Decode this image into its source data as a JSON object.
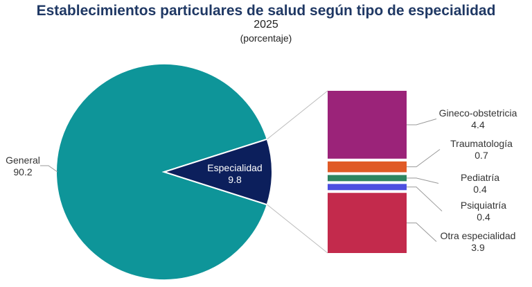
{
  "chart_data": {
    "type": "pie",
    "title": "Establecimientos particulares de salud según tipo de especialidad",
    "subtitle": "2025",
    "unit_label": "(porcentaje)",
    "slices": [
      {
        "name": "General",
        "value": 90.2,
        "color": "#0e9599"
      },
      {
        "name": "Especialidad",
        "value": 9.8,
        "color": "#0c1f5c"
      }
    ],
    "breakdown": {
      "of": "Especialidad",
      "type": "stacked-bar",
      "segments": [
        {
          "name": "Gineco-obstetricia",
          "value": 4.4,
          "color": "#9b2379"
        },
        {
          "name": "Traumatología",
          "value": 0.7,
          "color": "#e05a26"
        },
        {
          "name": "Pediatría",
          "value": 0.4,
          "color": "#2e8560"
        },
        {
          "name": "Psiquiatría",
          "value": 0.4,
          "color": "#4c4fe0"
        },
        {
          "name": "Otra especialidad",
          "value": 3.9,
          "color": "#c32a4c"
        }
      ]
    }
  }
}
